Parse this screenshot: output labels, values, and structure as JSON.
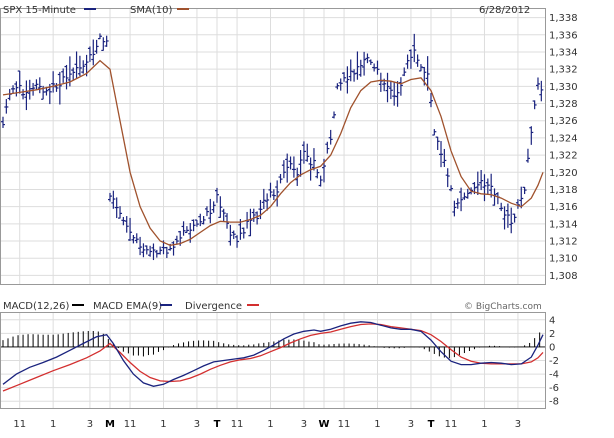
{
  "chart_data": [
    {
      "type": "ohlc",
      "title": "SPX 15-Minute",
      "series": [
        {
          "name": "SPX 15-Minute",
          "color": "#1a237e"
        },
        {
          "name": "SMA(10)",
          "color": "#a0522d"
        }
      ],
      "date": "6/28/2012",
      "ylim": [
        1307,
        1339
      ],
      "y_ticks": [
        "1,308",
        "1,310",
        "1,312",
        "1,314",
        "1,316",
        "1,318",
        "1,320",
        "1,322",
        "1,324",
        "1,326",
        "1,328",
        "1,330",
        "1,332",
        "1,334",
        "1,336",
        "1,338"
      ],
      "y_tick_values": [
        1308,
        1310,
        1312,
        1314,
        1316,
        1318,
        1320,
        1322,
        1324,
        1326,
        1328,
        1330,
        1332,
        1334,
        1336,
        1338
      ],
      "grid": true,
      "price_path": [
        [
          0,
          1326
        ],
        [
          3,
          1329
        ],
        [
          8,
          1330
        ],
        [
          14,
          1329
        ],
        [
          20,
          1330
        ],
        [
          26,
          1329.5
        ],
        [
          32,
          1330
        ],
        [
          38,
          1331
        ],
        [
          44,
          1332
        ],
        [
          50,
          1333
        ],
        [
          55,
          1334
        ],
        [
          58,
          1336
        ],
        [
          62,
          1335
        ],
        [
          63,
          1318
        ],
        [
          68,
          1316
        ],
        [
          74,
          1314
        ],
        [
          80,
          1312
        ],
        [
          86,
          1311
        ],
        [
          92,
          1310.5
        ],
        [
          98,
          1311
        ],
        [
          104,
          1312
        ],
        [
          110,
          1313.5
        ],
        [
          116,
          1314
        ],
        [
          122,
          1315
        ],
        [
          128,
          1317
        ],
        [
          132,
          1315
        ],
        [
          136,
          1313
        ],
        [
          140,
          1312
        ],
        [
          146,
          1314
        ],
        [
          152,
          1315
        ],
        [
          158,
          1317
        ],
        [
          164,
          1318
        ],
        [
          170,
          1321
        ],
        [
          176,
          1320
        ],
        [
          180,
          1322
        ],
        [
          186,
          1321
        ],
        [
          190,
          1319
        ],
        [
          196,
          1324
        ],
        [
          200,
          1330
        ],
        [
          206,
          1331
        ],
        [
          212,
          1332
        ],
        [
          218,
          1333
        ],
        [
          224,
          1332
        ],
        [
          228,
          1330
        ],
        [
          234,
          1329
        ],
        [
          238,
          1330
        ],
        [
          242,
          1333
        ],
        [
          246,
          1334
        ],
        [
          250,
          1332
        ],
        [
          254,
          1331
        ],
        [
          258,
          1325
        ],
        [
          262,
          1322
        ],
        [
          266,
          1320
        ],
        [
          270,
          1316
        ],
        [
          275,
          1317
        ],
        [
          280,
          1318
        ],
        [
          286,
          1319
        ],
        [
          292,
          1318
        ],
        [
          298,
          1316
        ],
        [
          304,
          1314
        ],
        [
          308,
          1316
        ],
        [
          312,
          1318
        ],
        [
          316,
          1325
        ],
        [
          320,
          1330
        ],
        [
          323,
          1329
        ]
      ],
      "sma_path": [
        [
          0,
          1329
        ],
        [
          10,
          1329.3
        ],
        [
          20,
          1329.6
        ],
        [
          30,
          1330
        ],
        [
          40,
          1330.5
        ],
        [
          50,
          1331.5
        ],
        [
          58,
          1333
        ],
        [
          64,
          1332
        ],
        [
          70,
          1326
        ],
        [
          76,
          1320
        ],
        [
          82,
          1316
        ],
        [
          88,
          1313.5
        ],
        [
          94,
          1312
        ],
        [
          100,
          1311.5
        ],
        [
          106,
          1311.7
        ],
        [
          112,
          1312.2
        ],
        [
          118,
          1313
        ],
        [
          124,
          1313.8
        ],
        [
          130,
          1314.3
        ],
        [
          136,
          1314.2
        ],
        [
          142,
          1314.2
        ],
        [
          148,
          1314.5
        ],
        [
          154,
          1315
        ],
        [
          160,
          1316
        ],
        [
          166,
          1317.5
        ],
        [
          172,
          1318.8
        ],
        [
          178,
          1319.7
        ],
        [
          184,
          1320.3
        ],
        [
          190,
          1320.7
        ],
        [
          196,
          1322
        ],
        [
          202,
          1324.5
        ],
        [
          208,
          1327.5
        ],
        [
          214,
          1329.5
        ],
        [
          220,
          1330.5
        ],
        [
          226,
          1330.7
        ],
        [
          232,
          1330.6
        ],
        [
          238,
          1330.3
        ],
        [
          244,
          1330.8
        ],
        [
          250,
          1331
        ],
        [
          256,
          1329.5
        ],
        [
          262,
          1326.5
        ],
        [
          268,
          1322.5
        ],
        [
          274,
          1319.5
        ],
        [
          280,
          1317.8
        ],
        [
          286,
          1317.5
        ],
        [
          292,
          1317.4
        ],
        [
          298,
          1317
        ],
        [
          304,
          1316.4
        ],
        [
          310,
          1316
        ],
        [
          316,
          1317
        ],
        [
          320,
          1318.5
        ],
        [
          323,
          1320
        ]
      ],
      "x_ticks": [
        {
          "label": "11",
          "bar": 10,
          "day": false
        },
        {
          "label": "1",
          "bar": 30,
          "day": false
        },
        {
          "label": "3",
          "bar": 52,
          "day": false
        },
        {
          "label": "M",
          "bar": 64,
          "day": true
        },
        {
          "label": "11",
          "bar": 76,
          "day": false
        },
        {
          "label": "1",
          "bar": 96,
          "day": false
        },
        {
          "label": "3",
          "bar": 116,
          "day": false
        },
        {
          "label": "T",
          "bar": 128,
          "day": true
        },
        {
          "label": "11",
          "bar": 140,
          "day": false
        },
        {
          "label": "1",
          "bar": 160,
          "day": false
        },
        {
          "label": "3",
          "bar": 180,
          "day": false
        },
        {
          "label": "W",
          "bar": 192,
          "day": true
        },
        {
          "label": "11",
          "bar": 204,
          "day": false
        },
        {
          "label": "1",
          "bar": 224,
          "day": false
        },
        {
          "label": "3",
          "bar": 244,
          "day": false
        },
        {
          "label": "T",
          "bar": 256,
          "day": true
        },
        {
          "label": "11",
          "bar": 268,
          "day": false
        },
        {
          "label": "1",
          "bar": 288,
          "day": false
        },
        {
          "label": "3",
          "bar": 308,
          "day": false
        }
      ]
    },
    {
      "type": "line",
      "title": "MACD(12,26)",
      "series": [
        {
          "name": "MACD EMA(9)",
          "color": "#1a237e",
          "values_path": [
            [
              0,
              -5.5
            ],
            [
              8,
              -4
            ],
            [
              16,
              -3
            ],
            [
              24,
              -2.3
            ],
            [
              32,
              -1.5
            ],
            [
              40,
              -0.5
            ],
            [
              48,
              0.5
            ],
            [
              56,
              1.5
            ],
            [
              62,
              1.8
            ],
            [
              66,
              0.5
            ],
            [
              72,
              -2
            ],
            [
              78,
              -4
            ],
            [
              84,
              -5.3
            ],
            [
              90,
              -5.8
            ],
            [
              96,
              -5.5
            ],
            [
              102,
              -4.8
            ],
            [
              108,
              -4.2
            ],
            [
              114,
              -3.5
            ],
            [
              120,
              -2.8
            ],
            [
              126,
              -2.2
            ],
            [
              132,
              -2
            ],
            [
              138,
              -1.8
            ],
            [
              144,
              -1.6
            ],
            [
              150,
              -1.2
            ],
            [
              156,
              -0.5
            ],
            [
              162,
              0.3
            ],
            [
              168,
              1.2
            ],
            [
              174,
              1.9
            ],
            [
              180,
              2.3
            ],
            [
              186,
              2.5
            ],
            [
              190,
              2.3
            ],
            [
              196,
              2.6
            ],
            [
              202,
              3.1
            ],
            [
              208,
              3.5
            ],
            [
              214,
              3.7
            ],
            [
              220,
              3.6
            ],
            [
              226,
              3.2
            ],
            [
              232,
              2.8
            ],
            [
              238,
              2.6
            ],
            [
              244,
              2.6
            ],
            [
              250,
              2.3
            ],
            [
              256,
              1
            ],
            [
              262,
              -0.7
            ],
            [
              268,
              -2.1
            ],
            [
              274,
              -2.6
            ],
            [
              280,
              -2.6
            ],
            [
              286,
              -2.4
            ],
            [
              292,
              -2.3
            ],
            [
              298,
              -2.4
            ],
            [
              304,
              -2.6
            ],
            [
              310,
              -2.5
            ],
            [
              316,
              -1.5
            ],
            [
              320,
              0.3
            ],
            [
              323,
              1.8
            ]
          ]
        },
        {
          "name": "Divergence",
          "color": "#d32f2f",
          "values_path": [
            [
              0,
              -6.5
            ],
            [
              10,
              -5.5
            ],
            [
              20,
              -4.5
            ],
            [
              30,
              -3.5
            ],
            [
              40,
              -2.6
            ],
            [
              50,
              -1.6
            ],
            [
              58,
              -0.6
            ],
            [
              64,
              0.5
            ],
            [
              70,
              -0.8
            ],
            [
              76,
              -2.3
            ],
            [
              82,
              -3.6
            ],
            [
              88,
              -4.5
            ],
            [
              94,
              -5
            ],
            [
              100,
              -5.1
            ],
            [
              106,
              -5
            ],
            [
              112,
              -4.6
            ],
            [
              118,
              -4
            ],
            [
              124,
              -3.3
            ],
            [
              130,
              -2.7
            ],
            [
              136,
              -2.2
            ],
            [
              142,
              -1.9
            ],
            [
              148,
              -1.7
            ],
            [
              154,
              -1.3
            ],
            [
              160,
              -0.7
            ],
            [
              166,
              -0.1
            ],
            [
              172,
              0.6
            ],
            [
              178,
              1.2
            ],
            [
              184,
              1.7
            ],
            [
              190,
              2
            ],
            [
              196,
              2.2
            ],
            [
              202,
              2.6
            ],
            [
              208,
              3
            ],
            [
              214,
              3.3
            ],
            [
              220,
              3.4
            ],
            [
              226,
              3.3
            ],
            [
              232,
              3
            ],
            [
              238,
              2.8
            ],
            [
              244,
              2.6
            ],
            [
              250,
              2.4
            ],
            [
              256,
              1.8
            ],
            [
              262,
              0.8
            ],
            [
              268,
              -0.4
            ],
            [
              274,
              -1.5
            ],
            [
              280,
              -2.1
            ],
            [
              286,
              -2.4
            ],
            [
              292,
              -2.5
            ],
            [
              298,
              -2.5
            ],
            [
              304,
              -2.5
            ],
            [
              310,
              -2.5
            ],
            [
              316,
              -2.2
            ],
            [
              320,
              -1.6
            ],
            [
              323,
              -0.8
            ]
          ]
        }
      ],
      "histogram_color": "#000000",
      "ylim": [
        -9,
        5
      ],
      "y_ticks": [
        "4",
        "2",
        "0",
        "-2",
        "-4",
        "-6",
        "-8"
      ],
      "y_tick_values": [
        4,
        2,
        0,
        -2,
        -4,
        -6,
        -8
      ],
      "credit": "© BigCharts.com"
    }
  ]
}
